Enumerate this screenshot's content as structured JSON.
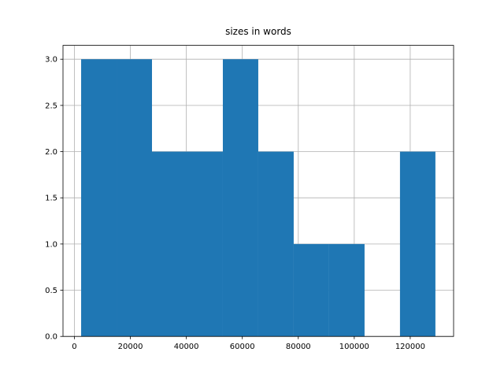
{
  "chart_data": {
    "type": "histogram",
    "title": "sizes in words",
    "bins": [
      2400,
      15060,
      27720,
      40380,
      53040,
      65700,
      78360,
      91020,
      103680,
      116340,
      129000
    ],
    "counts": [
      3,
      3,
      2,
      2,
      3,
      2,
      1,
      1,
      0,
      2
    ],
    "color": "#1f77b4",
    "xlim": [
      -4080,
      135500
    ],
    "xticks": [
      0,
      20000,
      40000,
      60000,
      80000,
      100000,
      120000
    ],
    "ylim": [
      0,
      3.15
    ],
    "yticks": [
      {
        "value": 0,
        "label": "0.0"
      },
      {
        "value": 0.5,
        "label": "0.5"
      },
      {
        "value": 1,
        "label": "1.0"
      },
      {
        "value": 1.5,
        "label": "1.5"
      },
      {
        "value": 2,
        "label": "2.0"
      },
      {
        "value": 2.5,
        "label": "2.5"
      },
      {
        "value": 3,
        "label": "3.0"
      }
    ],
    "grid": true
  }
}
